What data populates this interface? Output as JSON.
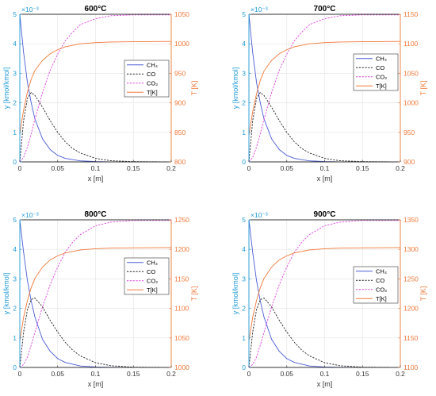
{
  "chart_data": [
    {
      "type": "line",
      "title": "600°C",
      "xlabel": "x [m]",
      "ylabel": "y [kmol/kmol]",
      "y2label": "T [K]",
      "xlim": [
        0,
        0.2
      ],
      "xticks": [
        "0",
        "0.05",
        "0.1",
        "0.15",
        "0.2"
      ],
      "ylim": [
        0,
        5
      ],
      "yticks": [
        "0",
        "1",
        "2",
        "3",
        "4",
        "5"
      ],
      "yexponent": "×10⁻³",
      "y2lim": [
        800,
        1050
      ],
      "y2ticks": [
        "800",
        "850",
        "900",
        "950",
        "1000",
        "1050"
      ],
      "grid": true,
      "legend_position": "right",
      "series": [
        {
          "name": "CH₄",
          "axis": "left",
          "color": "#4a5bd6",
          "style": "solid",
          "x": [
            0,
            0.005,
            0.01,
            0.015,
            0.02,
            0.03,
            0.04,
            0.05,
            0.06,
            0.08,
            0.1,
            0.12,
            0.15,
            0.2
          ],
          "y": [
            5.0,
            3.7,
            2.7,
            2.0,
            1.45,
            0.78,
            0.42,
            0.22,
            0.12,
            0.035,
            0.01,
            0.003,
            0.0,
            0.0
          ]
        },
        {
          "name": "CO",
          "axis": "left",
          "color": "#222222",
          "style": "dashed",
          "x": [
            0,
            0.005,
            0.01,
            0.015,
            0.02,
            0.03,
            0.04,
            0.05,
            0.06,
            0.07,
            0.08,
            0.1,
            0.12,
            0.15,
            0.2
          ],
          "y": [
            0,
            1.4,
            2.15,
            2.35,
            2.25,
            1.85,
            1.4,
            1.0,
            0.68,
            0.45,
            0.3,
            0.12,
            0.04,
            0.01,
            0.0
          ]
        },
        {
          "name": "CO₂",
          "axis": "left",
          "color": "#e040e0",
          "style": "dashed",
          "x": [
            0,
            0.005,
            0.01,
            0.015,
            0.02,
            0.03,
            0.04,
            0.05,
            0.06,
            0.07,
            0.08,
            0.1,
            0.12,
            0.15,
            0.2
          ],
          "y": [
            0,
            0.15,
            0.5,
            0.95,
            1.45,
            2.35,
            3.1,
            3.65,
            4.1,
            4.4,
            4.65,
            4.85,
            4.95,
            4.98,
            4.98
          ]
        },
        {
          "name": "T[K]",
          "axis": "right",
          "color": "#f07838",
          "style": "solid",
          "x": [
            0,
            0.005,
            0.01,
            0.015,
            0.02,
            0.03,
            0.04,
            0.05,
            0.06,
            0.08,
            0.1,
            0.12,
            0.15,
            0.2
          ],
          "y": [
            848,
            888,
            918,
            940,
            955,
            972,
            983,
            990,
            995,
            1000,
            1002,
            1003,
            1003.5,
            1004
          ]
        }
      ]
    },
    {
      "type": "line",
      "title": "700°C",
      "xlabel": "x [m]",
      "ylabel": "y [kmol/kmol]",
      "y2label": "T [K]",
      "xlim": [
        0,
        0.2
      ],
      "xticks": [
        "0",
        "0.05",
        "0.1",
        "0.15",
        "0.2"
      ],
      "ylim": [
        0,
        5
      ],
      "yticks": [
        "0",
        "1",
        "2",
        "3",
        "4",
        "5"
      ],
      "yexponent": "×10⁻³",
      "y2lim": [
        900,
        1150
      ],
      "y2ticks": [
        "900",
        "950",
        "1000",
        "1050",
        "1100",
        "1150"
      ],
      "grid": true,
      "legend_position": "right",
      "series": [
        {
          "name": "CH₄",
          "axis": "left",
          "color": "#4a5bd6",
          "style": "solid",
          "x": [
            0,
            0.005,
            0.01,
            0.015,
            0.02,
            0.03,
            0.04,
            0.05,
            0.06,
            0.08,
            0.1,
            0.12,
            0.15,
            0.2
          ],
          "y": [
            5.0,
            3.7,
            2.7,
            2.0,
            1.45,
            0.78,
            0.42,
            0.22,
            0.12,
            0.035,
            0.01,
            0.003,
            0.0,
            0.0
          ]
        },
        {
          "name": "CO",
          "axis": "left",
          "color": "#222222",
          "style": "dashed",
          "x": [
            0,
            0.005,
            0.01,
            0.015,
            0.02,
            0.03,
            0.04,
            0.05,
            0.06,
            0.07,
            0.08,
            0.1,
            0.12,
            0.15,
            0.2
          ],
          "y": [
            0,
            1.4,
            2.15,
            2.35,
            2.25,
            1.85,
            1.4,
            1.0,
            0.68,
            0.45,
            0.3,
            0.12,
            0.04,
            0.01,
            0.0
          ]
        },
        {
          "name": "CO₂",
          "axis": "left",
          "color": "#e040e0",
          "style": "dashed",
          "x": [
            0,
            0.005,
            0.01,
            0.015,
            0.02,
            0.03,
            0.04,
            0.05,
            0.06,
            0.07,
            0.08,
            0.1,
            0.12,
            0.15,
            0.2
          ],
          "y": [
            0,
            0.15,
            0.5,
            0.95,
            1.45,
            2.35,
            3.1,
            3.65,
            4.1,
            4.4,
            4.65,
            4.85,
            4.95,
            4.98,
            4.98
          ]
        },
        {
          "name": "T[K]",
          "axis": "right",
          "color": "#f07838",
          "style": "solid",
          "x": [
            0,
            0.005,
            0.01,
            0.015,
            0.02,
            0.03,
            0.04,
            0.05,
            0.06,
            0.08,
            0.1,
            0.12,
            0.15,
            0.2
          ],
          "y": [
            945,
            985,
            1015,
            1038,
            1054,
            1072,
            1083,
            1090,
            1095,
            1100,
            1102,
            1103,
            1103.5,
            1104
          ]
        }
      ]
    },
    {
      "type": "line",
      "title": "800°C",
      "xlabel": "x [m]",
      "ylabel": "y [kmol/kmol]",
      "y2label": "T [K]",
      "xlim": [
        0,
        0.2
      ],
      "xticks": [
        "0",
        "0.05",
        "0.1",
        "0.15",
        "0.2"
      ],
      "ylim": [
        0,
        5
      ],
      "yticks": [
        "0",
        "1",
        "2",
        "3",
        "4",
        "5"
      ],
      "yexponent": "×10⁻³",
      "y2lim": [
        1000,
        1250
      ],
      "y2ticks": [
        "1000",
        "1050",
        "1100",
        "1150",
        "1200",
        "1250"
      ],
      "grid": true,
      "legend_position": "right",
      "series": [
        {
          "name": "CH₄",
          "axis": "left",
          "color": "#4a5bd6",
          "style": "solid",
          "x": [
            0,
            0.005,
            0.01,
            0.015,
            0.02,
            0.03,
            0.04,
            0.05,
            0.06,
            0.08,
            0.1,
            0.12,
            0.15,
            0.2
          ],
          "y": [
            5.0,
            3.9,
            2.95,
            2.25,
            1.7,
            0.95,
            0.55,
            0.3,
            0.17,
            0.05,
            0.015,
            0.004,
            0.0,
            0.0
          ]
        },
        {
          "name": "CO",
          "axis": "left",
          "color": "#222222",
          "style": "dashed",
          "x": [
            0,
            0.005,
            0.01,
            0.015,
            0.02,
            0.03,
            0.04,
            0.05,
            0.06,
            0.07,
            0.08,
            0.1,
            0.12,
            0.15,
            0.2
          ],
          "y": [
            0,
            1.2,
            1.95,
            2.3,
            2.35,
            2.05,
            1.6,
            1.2,
            0.85,
            0.58,
            0.39,
            0.16,
            0.06,
            0.01,
            0.0
          ]
        },
        {
          "name": "CO₂",
          "axis": "left",
          "color": "#e040e0",
          "style": "dashed",
          "x": [
            0,
            0.005,
            0.01,
            0.015,
            0.02,
            0.03,
            0.04,
            0.05,
            0.06,
            0.07,
            0.08,
            0.1,
            0.12,
            0.15,
            0.2
          ],
          "y": [
            0,
            0.1,
            0.35,
            0.75,
            1.2,
            2.05,
            2.8,
            3.4,
            3.9,
            4.25,
            4.5,
            4.8,
            4.92,
            4.98,
            4.98
          ]
        },
        {
          "name": "T[K]",
          "axis": "right",
          "color": "#f07838",
          "style": "solid",
          "x": [
            0,
            0.005,
            0.01,
            0.015,
            0.02,
            0.03,
            0.04,
            0.05,
            0.06,
            0.08,
            0.1,
            0.12,
            0.15,
            0.2
          ],
          "y": [
            1045,
            1085,
            1113,
            1135,
            1151,
            1170,
            1182,
            1189,
            1194,
            1199,
            1201,
            1202,
            1202.5,
            1203
          ]
        }
      ]
    },
    {
      "type": "line",
      "title": "900°C",
      "xlabel": "x [m]",
      "ylabel": "y [kmol/kmol]",
      "y2label": "T [K]",
      "xlim": [
        0,
        0.2
      ],
      "xticks": [
        "0",
        "0.05",
        "0.1",
        "0.15",
        "0.2"
      ],
      "ylim": [
        0,
        5
      ],
      "yticks": [
        "0",
        "1",
        "2",
        "3",
        "4",
        "5"
      ],
      "yexponent": "×10⁻³",
      "y2lim": [
        1100,
        1350
      ],
      "y2ticks": [
        "1100",
        "1150",
        "1200",
        "1250",
        "1300",
        "1350"
      ],
      "grid": true,
      "legend_position": "right",
      "series": [
        {
          "name": "CH₄",
          "axis": "left",
          "color": "#4a5bd6",
          "style": "solid",
          "x": [
            0,
            0.005,
            0.01,
            0.015,
            0.02,
            0.03,
            0.04,
            0.05,
            0.06,
            0.08,
            0.1,
            0.12,
            0.15,
            0.2
          ],
          "y": [
            5.0,
            3.9,
            2.95,
            2.25,
            1.7,
            0.95,
            0.55,
            0.3,
            0.17,
            0.05,
            0.015,
            0.004,
            0.0,
            0.0
          ]
        },
        {
          "name": "CO",
          "axis": "left",
          "color": "#222222",
          "style": "dashed",
          "x": [
            0,
            0.005,
            0.01,
            0.015,
            0.02,
            0.03,
            0.04,
            0.05,
            0.06,
            0.07,
            0.08,
            0.1,
            0.12,
            0.15,
            0.2
          ],
          "y": [
            0,
            1.2,
            1.95,
            2.3,
            2.35,
            2.05,
            1.6,
            1.2,
            0.85,
            0.58,
            0.39,
            0.16,
            0.06,
            0.01,
            0.0
          ]
        },
        {
          "name": "CO₂",
          "axis": "left",
          "color": "#e040e0",
          "style": "dashed",
          "x": [
            0,
            0.005,
            0.01,
            0.015,
            0.02,
            0.03,
            0.04,
            0.05,
            0.06,
            0.07,
            0.08,
            0.1,
            0.12,
            0.15,
            0.2
          ],
          "y": [
            0,
            0.1,
            0.35,
            0.75,
            1.2,
            2.05,
            2.8,
            3.4,
            3.9,
            4.25,
            4.5,
            4.8,
            4.92,
            4.98,
            4.98
          ]
        },
        {
          "name": "T[K]",
          "axis": "right",
          "color": "#f07838",
          "style": "solid",
          "x": [
            0,
            0.005,
            0.01,
            0.015,
            0.02,
            0.03,
            0.04,
            0.05,
            0.06,
            0.08,
            0.1,
            0.12,
            0.15,
            0.2
          ],
          "y": [
            1145,
            1185,
            1213,
            1235,
            1251,
            1270,
            1282,
            1289,
            1294,
            1299,
            1301,
            1302,
            1302.5,
            1303
          ]
        }
      ]
    }
  ],
  "colors": {
    "left_axis": "#1f9ad6",
    "right_axis": "#f07838",
    "grid": "#e6e6e6",
    "axis_text": "#333333"
  }
}
